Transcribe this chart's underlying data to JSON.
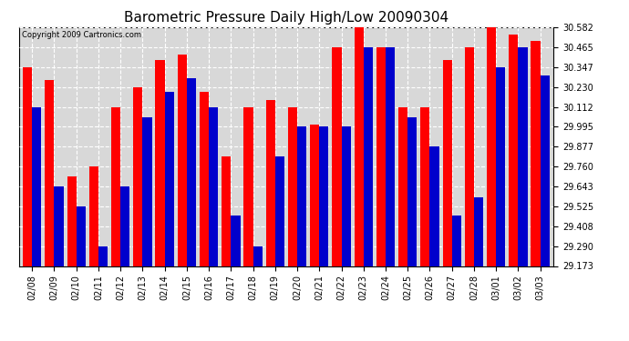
{
  "title": "Barometric Pressure Daily High/Low 20090304",
  "copyright": "Copyright 2009 Cartronics.com",
  "dates": [
    "02/08",
    "02/09",
    "02/10",
    "02/11",
    "02/12",
    "02/13",
    "02/14",
    "02/15",
    "02/16",
    "02/17",
    "02/18",
    "02/19",
    "02/20",
    "02/21",
    "02/22",
    "02/23",
    "02/24",
    "02/25",
    "02/26",
    "02/27",
    "02/28",
    "03/01",
    "03/02",
    "03/03"
  ],
  "highs": [
    30.347,
    30.27,
    29.7,
    29.76,
    30.112,
    30.23,
    30.39,
    30.42,
    30.2,
    29.82,
    30.112,
    30.15,
    30.112,
    30.005,
    30.465,
    30.582,
    30.465,
    30.112,
    30.112,
    30.39,
    30.465,
    30.582,
    30.54,
    30.5
  ],
  "lows": [
    30.112,
    29.643,
    29.525,
    29.29,
    29.643,
    30.05,
    30.2,
    30.28,
    30.112,
    29.47,
    29.29,
    29.82,
    29.995,
    29.995,
    29.995,
    30.465,
    30.465,
    30.05,
    29.877,
    29.47,
    29.58,
    30.347,
    30.465,
    30.3
  ],
  "ymin": 29.173,
  "ymax": 30.582,
  "yticks": [
    29.173,
    29.29,
    29.408,
    29.525,
    29.643,
    29.76,
    29.877,
    29.995,
    30.112,
    30.23,
    30.347,
    30.465,
    30.582
  ],
  "high_color": "#ff0000",
  "low_color": "#0000cc",
  "bg_color": "#ffffff",
  "plot_bg_color": "#d8d8d8",
  "grid_color": "#ffffff",
  "title_fontsize": 11,
  "tick_fontsize": 7,
  "copyright_fontsize": 6
}
